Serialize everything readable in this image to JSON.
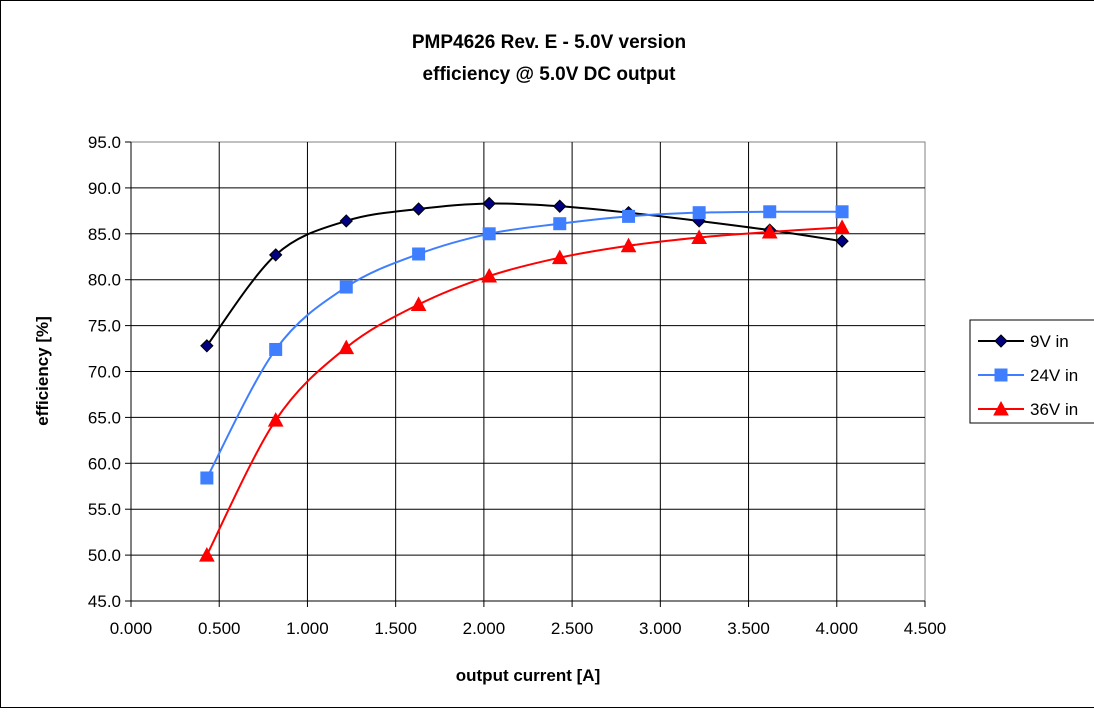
{
  "chart_data": {
    "type": "line",
    "title_lines": [
      "PMP4626 Rev. E - 5.0V version",
      "efficiency @ 5.0V DC output"
    ],
    "xlabel": "output current [A]",
    "ylabel": "efficiency [%]",
    "xlim": [
      0,
      4.5
    ],
    "ylim": [
      45,
      95
    ],
    "x_ticks": [
      "0.000",
      "0.500",
      "1.000",
      "1.500",
      "2.000",
      "2.500",
      "3.000",
      "3.500",
      "4.000",
      "4.500"
    ],
    "y_ticks": [
      "95.0",
      "90.0",
      "85.0",
      "80.0",
      "75.0",
      "70.0",
      "65.0",
      "60.0",
      "55.0",
      "50.0",
      "45.0"
    ],
    "grid": true,
    "legend_position": "right",
    "series": [
      {
        "name": "9V in",
        "color": "#000000",
        "marker": "diamond",
        "marker_fill": "#000080",
        "x": [
          0.43,
          0.82,
          1.22,
          1.63,
          2.03,
          2.43,
          2.82,
          3.22,
          3.62,
          4.03
        ],
        "y": [
          72.8,
          82.7,
          86.4,
          87.7,
          88.3,
          88.0,
          87.3,
          86.4,
          85.4,
          84.2
        ]
      },
      {
        "name": "24V in",
        "color": "#3F7FFF",
        "marker": "square",
        "marker_fill": "#3F7FFF",
        "x": [
          0.43,
          0.82,
          1.22,
          1.63,
          2.03,
          2.43,
          2.82,
          3.22,
          3.62,
          4.03
        ],
        "y": [
          58.4,
          72.4,
          79.2,
          82.8,
          85.0,
          86.1,
          86.9,
          87.3,
          87.4,
          87.4
        ]
      },
      {
        "name": "36V in",
        "color": "#FF0000",
        "marker": "triangle",
        "marker_fill": "#FF0000",
        "x": [
          0.43,
          0.82,
          1.22,
          1.63,
          2.03,
          2.43,
          2.82,
          3.22,
          3.62,
          4.03
        ],
        "y": [
          50.0,
          64.7,
          72.6,
          77.3,
          80.4,
          82.4,
          83.7,
          84.6,
          85.2,
          85.7
        ]
      }
    ]
  }
}
